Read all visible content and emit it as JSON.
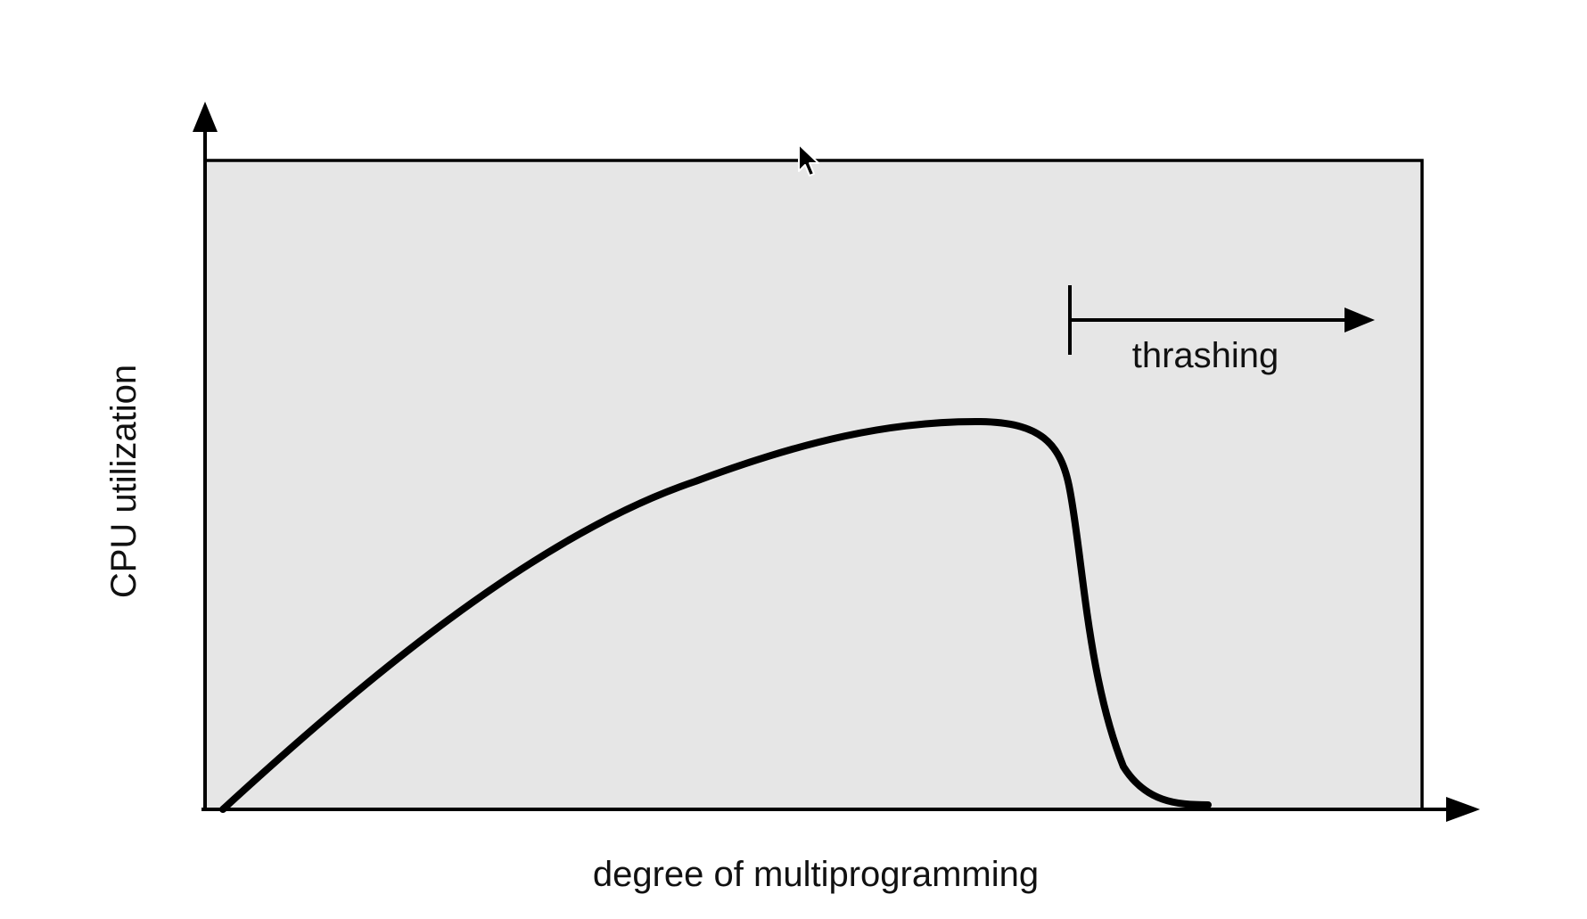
{
  "chart_data": {
    "type": "line",
    "title": "",
    "xlabel": "degree of multiprogramming",
    "ylabel": "CPU utilization",
    "annotation": "thrashing",
    "grid": false,
    "colors": {
      "plot_background": "#e6e6e6",
      "line": "#000000",
      "axes": "#000000"
    }
  }
}
